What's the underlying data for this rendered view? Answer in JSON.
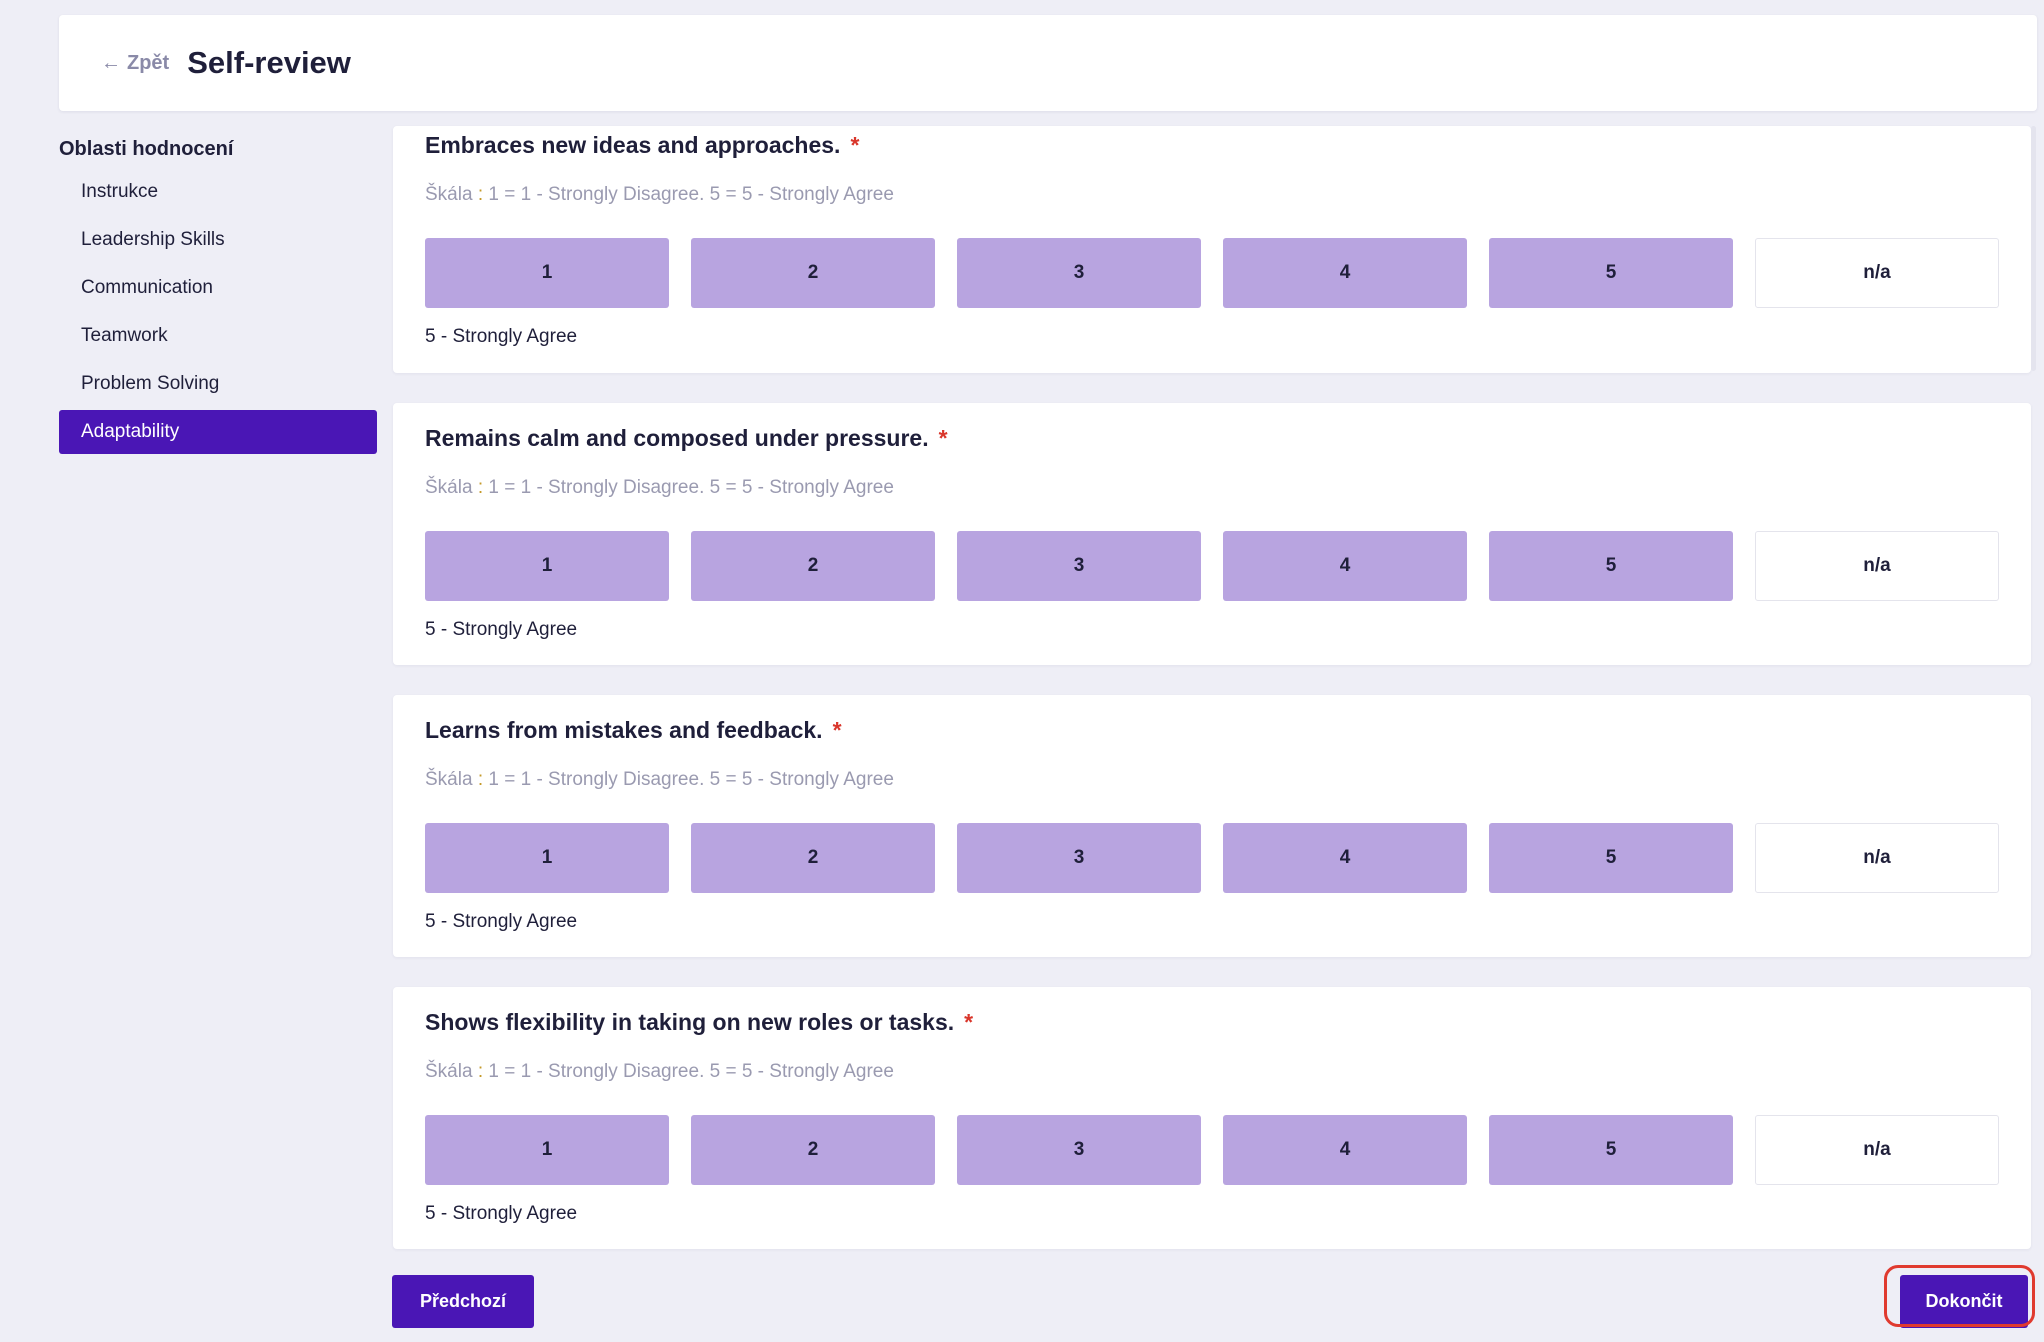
{
  "header": {
    "back_label": "Zpět",
    "title": "Self-review"
  },
  "sidebar": {
    "heading": "Oblasti hodnocení",
    "items": [
      {
        "label": "Instrukce"
      },
      {
        "label": "Leadership Skills"
      },
      {
        "label": "Communication"
      },
      {
        "label": "Teamwork"
      },
      {
        "label": "Problem Solving"
      },
      {
        "label": "Adaptability",
        "active": true
      }
    ]
  },
  "scale_options": [
    "1",
    "2",
    "3",
    "4",
    "5",
    "n/a"
  ],
  "questions": [
    {
      "title": "Embraces new ideas and approaches.",
      "required": "*",
      "scale_prefix": "Škála",
      "scale_colon": ":",
      "scale_text": "1 = 1 - Strongly Disagree. 5 = 5 - Strongly Agree",
      "selected_label": "5 - Strongly Agree"
    },
    {
      "title": "Remains calm and composed under pressure.",
      "required": "*",
      "scale_prefix": "Škála",
      "scale_colon": ":",
      "scale_text": "1 = 1 - Strongly Disagree. 5 = 5 - Strongly Agree",
      "selected_label": "5 - Strongly Agree"
    },
    {
      "title": "Learns from mistakes and feedback.",
      "required": "*",
      "scale_prefix": "Škála",
      "scale_colon": ":",
      "scale_text": "1 = 1 - Strongly Disagree. 5 = 5 - Strongly Agree",
      "selected_label": "5 - Strongly Agree"
    },
    {
      "title": "Shows flexibility in taking on new roles or tasks.",
      "required": "*",
      "scale_prefix": "Škála",
      "scale_colon": ":",
      "scale_text": "1 = 1 - Strongly Disagree. 5 = 5 - Strongly Agree",
      "selected_label": "5 - Strongly Agree"
    }
  ],
  "footer": {
    "prev_label": "Předchozí",
    "finish_label": "Dokončit"
  },
  "colors": {
    "accent": "#4a16b5",
    "option": "#b8a4e0",
    "required": "#d9362b",
    "highlight": "#e03a2f"
  }
}
